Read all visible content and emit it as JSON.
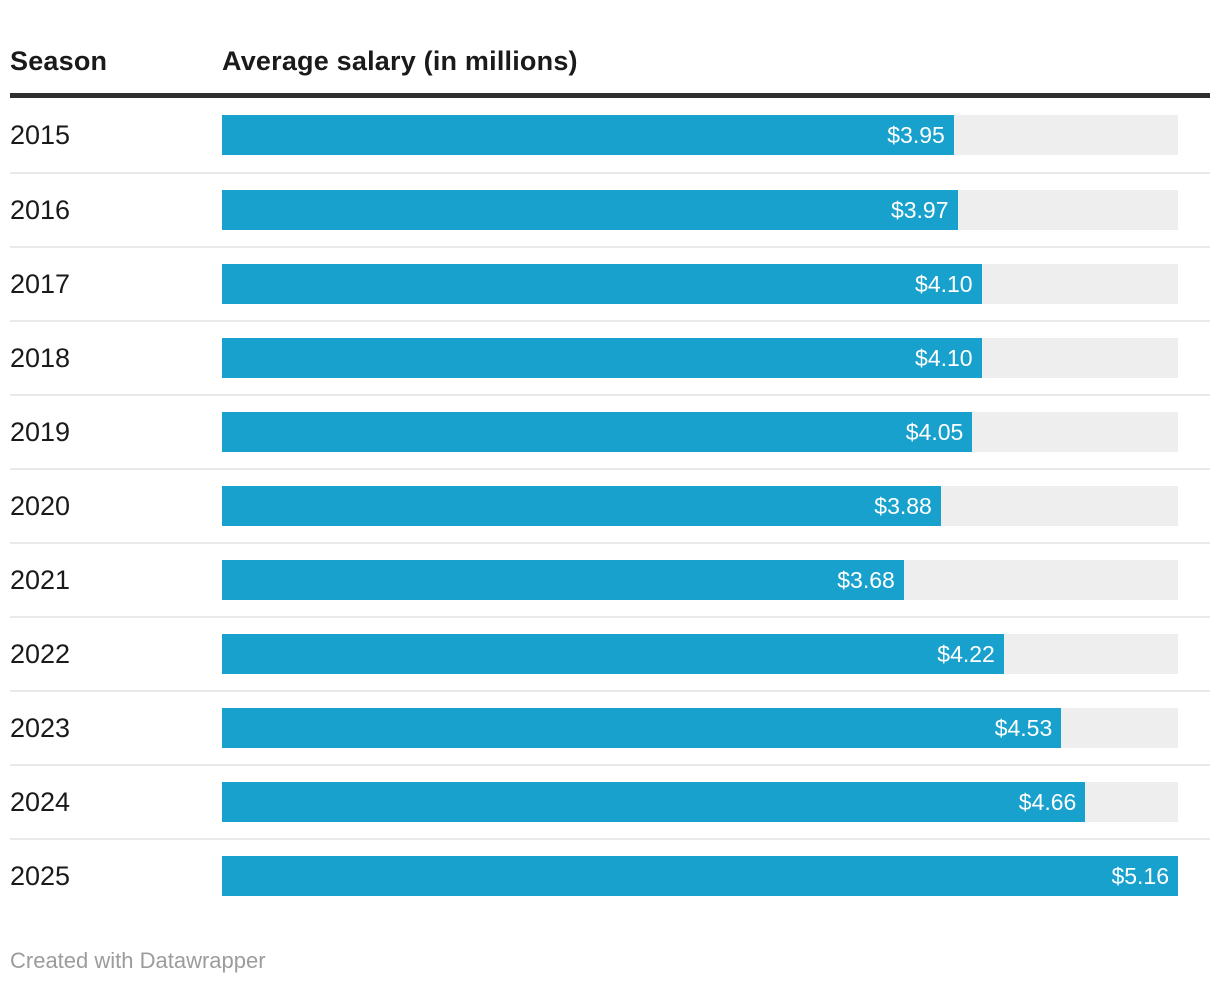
{
  "header": {
    "season_label": "Season",
    "value_label": "Average salary (in millions)"
  },
  "chart_data": {
    "type": "bar",
    "orientation": "horizontal",
    "categories": [
      "2015",
      "2016",
      "2017",
      "2018",
      "2019",
      "2020",
      "2021",
      "2022",
      "2023",
      "2024",
      "2025"
    ],
    "values": [
      3.95,
      3.97,
      4.1,
      4.1,
      4.05,
      3.88,
      3.68,
      4.22,
      4.53,
      4.66,
      5.16
    ],
    "value_labels": [
      "$3.95",
      "$3.97",
      "$4.10",
      "$4.10",
      "$4.05",
      "$3.88",
      "$3.68",
      "$4.22",
      "$4.53",
      "$4.66",
      "$5.16"
    ],
    "title": "Average salary (in millions)",
    "xlabel": "Season",
    "ylabel": "Average salary (in millions)",
    "xlim": [
      0,
      5.16
    ],
    "grid": false,
    "legend": "none",
    "bar_color": "#18a1cd",
    "track_color": "#eeeeee"
  },
  "footer": {
    "credit": "Created with Datawrapper"
  },
  "colors": {
    "bar": "#18a1cd",
    "track": "#eeeeee",
    "header_rule": "#2f2f2f",
    "separator": "#e9e9e9",
    "text": "#1a1a1a",
    "value_text": "#ffffff",
    "credit_text": "#9c9c9c"
  }
}
